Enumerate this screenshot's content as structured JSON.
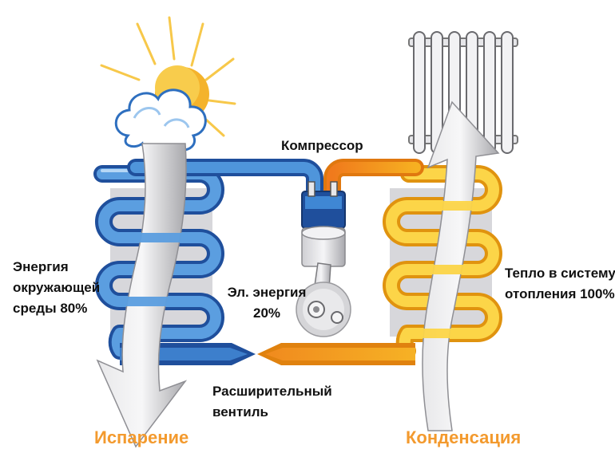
{
  "labels": {
    "compressor": "Компрессор",
    "env_energy_line1": "Энергия",
    "env_energy_line2": "окружающей",
    "env_energy_line3": "среды 80%",
    "el_energy_line1": "Эл. энергия",
    "el_energy_line2": "20%",
    "heat_line1": "Тепло в систему",
    "heat_line2": "отопления 100%",
    "valve_line1": "Расширительный",
    "valve_line2": "вентиль",
    "evaporation": "Испарение",
    "condensation": "Конденсация"
  },
  "colors": {
    "cold_pipe": "#3a7fc8",
    "cold_pipe_light": "#a9cdf0",
    "hot_pipe": "#f4b420",
    "hot_pipe_orange": "#f28a1a",
    "stage_label": "#f39a2e",
    "panel": "#d8d8dc",
    "arrow": "#c9c9cc"
  }
}
